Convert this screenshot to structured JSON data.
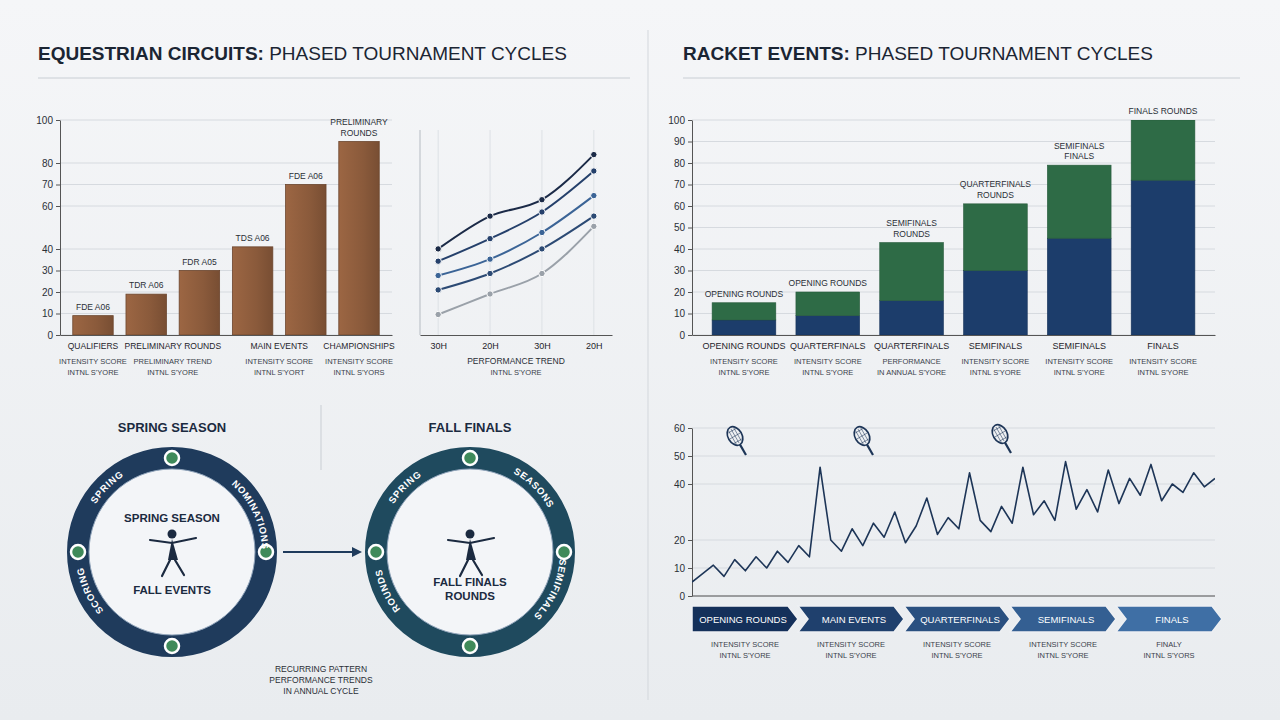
{
  "chart_data": [
    {
      "type": "bar",
      "title": "EQUESTRIAN CIRCUITS: PHASED TOURNAMENT CYCLES",
      "categories": [
        "QUALIFIERS",
        "PRELIMINARY ROUNDS",
        null,
        "MAIN EVENTS",
        null,
        "CHAMPIONSHIPS"
      ],
      "values": [
        9,
        19,
        30,
        41,
        70,
        90
      ],
      "color": "#8a5a3b",
      "annotations": [
        "FDE A06",
        "TDR A06",
        "FDR A05",
        "TDS A06",
        "FDE A06",
        "PRELIMINARY ROUNDS"
      ],
      "x_sublabels": [
        [
          "INTENSITY SCORE",
          "INTNL S'YORE"
        ],
        [
          "PRELIMINARY TREND",
          "INTNL S'YORE"
        ],
        [
          "INTENSITY SCORE",
          "INTNL S'YORT"
        ],
        [
          "INTENSITY SCORE",
          "INTNL S'YORS"
        ]
      ],
      "ylim": [
        0,
        100
      ],
      "yticks": [
        0,
        10,
        20,
        30,
        40,
        60,
        70,
        80,
        100
      ],
      "grid": true
    },
    {
      "type": "line",
      "categories": [
        "30H",
        "20H",
        "30H",
        "20H"
      ],
      "series": [
        {
          "color": "#1b2a47",
          "values": [
            42,
            58,
            66,
            88
          ]
        },
        {
          "color": "#25406b",
          "values": [
            36,
            47,
            60,
            80
          ]
        },
        {
          "color": "#3b6496",
          "values": [
            29,
            37,
            50,
            68
          ]
        },
        {
          "color": "#2c4a74",
          "values": [
            22,
            30,
            42,
            58
          ]
        },
        {
          "color": "#9aa1a9",
          "values": [
            10,
            20,
            30,
            53
          ]
        }
      ],
      "xlabel": "PERFORMANCE TREND",
      "xlabel_sub": "INTNL S'YORE",
      "ylim": [
        0,
        100
      ],
      "tick_labels": "x",
      "marker": "circle",
      "grid": true
    },
    {
      "type": "bar",
      "stacked": true,
      "title": "RACKET EVENTS: PHASED TOURNAMENT CYCLES",
      "categories": [
        "OPENING ROUNDS",
        "QUARTERFINALS",
        "QUARTERFINALS",
        "SEMIFINALS",
        "SEMIFINALS",
        "FINALS"
      ],
      "series": [
        {
          "color": "#1c3d6b",
          "values": [
            7,
            9,
            16,
            30,
            45,
            72
          ]
        },
        {
          "color": "#2e6b46",
          "values": [
            8,
            11,
            27,
            31,
            34,
            28
          ]
        }
      ],
      "annotations": [
        "OPENING ROUNDS",
        "OPENING ROUNDS",
        "SEMIFINALS ROUNDS",
        "QUARTERFINALS ROUNDS",
        "SEMIFINALS FINALS",
        "FINALS ROUNDS"
      ],
      "x_sublabels": [
        [
          "INTENSITY SCORE",
          "INTNL S'YORE"
        ],
        [
          "INTENSITY SCORE",
          "INTNL S'YORE"
        ],
        [
          "PERFORMANCE",
          "IN ANNUAL S'YORE"
        ],
        [
          "INTENSITY SCORE",
          "INTNL S'YORE"
        ],
        [
          "INTENSITY SCORE",
          "INTNL S'YORE"
        ],
        [
          "INTENSITY SCORE",
          "INTNL S'YORE"
        ]
      ],
      "ylim": [
        0,
        100
      ],
      "yticks": [
        0,
        10,
        20,
        30,
        40,
        50,
        60,
        70,
        80,
        90,
        100
      ],
      "grid": true
    },
    {
      "type": "line",
      "x": [
        0,
        1,
        2,
        3,
        4,
        5,
        6,
        7,
        8,
        9,
        10,
        11,
        12,
        13,
        14,
        15,
        16,
        17,
        18,
        19,
        20,
        21,
        22,
        23,
        24,
        25,
        26,
        27,
        28,
        29,
        30,
        31,
        32,
        33,
        34,
        35,
        36,
        37,
        38,
        39,
        40,
        41,
        42,
        43,
        44,
        45,
        46,
        47,
        48,
        49
      ],
      "series": [
        {
          "color": "#1d3557",
          "values": [
            5,
            8,
            11,
            7,
            13,
            9,
            14,
            10,
            16,
            12,
            18,
            14,
            46,
            20,
            16,
            24,
            18,
            26,
            21,
            30,
            19,
            25,
            35,
            22,
            28,
            24,
            44,
            27,
            23,
            32,
            26,
            46,
            29,
            34,
            27,
            48,
            31,
            38,
            30,
            45,
            33,
            42,
            36,
            47,
            34,
            40,
            37,
            44,
            39,
            42
          ]
        }
      ],
      "xlim": [
        0,
        49
      ],
      "ylim": [
        0,
        60
      ],
      "yticks": [
        0,
        10,
        20,
        40,
        50,
        60
      ],
      "tick_labels": "y",
      "grid": true,
      "phases": [
        {
          "label": "OPENING ROUNDS",
          "sublabels": [
            "INTENSITY SCORE",
            "INTNL S'YORE"
          ]
        },
        {
          "label": "MAIN EVENTS",
          "sublabels": [
            "INTENSITY SCORE",
            "INTNL S'YORE"
          ]
        },
        {
          "label": "QUARTERFINALS",
          "sublabels": [
            "INTENSITY SCORE",
            "INTNL S'YORE"
          ]
        },
        {
          "label": "SEMIFINALS",
          "sublabels": [
            "INTENSITY SCORE",
            "INTNL S'YORE"
          ]
        },
        {
          "label": "FINALS",
          "sublabels": [
            "FINALY",
            "INTNL S'YORS"
          ]
        }
      ]
    }
  ],
  "diagram": {
    "left": {
      "heading": "SPRING SEASON",
      "ring_labels": [
        "SPRING",
        "SCORING",
        "NOMINATIONS"
      ],
      "center": [
        "SPRING SEASON",
        "FALL EVENTS"
      ]
    },
    "right": {
      "heading": "FALL FINALS",
      "ring_labels": [
        "SPRING",
        "SEASONS",
        "ROUNDS",
        "SEMIFINALS"
      ],
      "center": [
        "FALL FINALS",
        "ROUNDS"
      ]
    },
    "caption": [
      "RECURRING PATTERN",
      "PERFORMANCE TRENDS",
      "IN ANNUAL CYCLE"
    ]
  }
}
